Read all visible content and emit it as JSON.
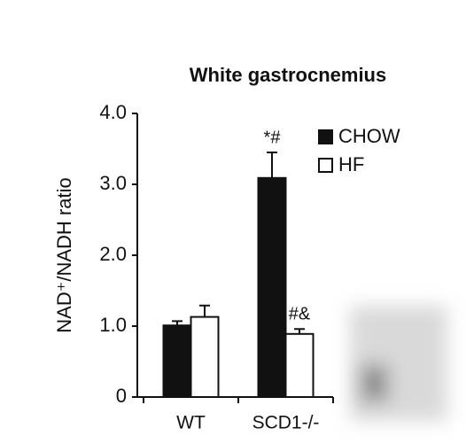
{
  "chart_data": {
    "type": "bar",
    "title": "White gastrocnemius",
    "y_label": "NAD⁺/NADH ratio",
    "categories": [
      "WT",
      "SCD1-/-"
    ],
    "series": [
      {
        "name": "CHOW",
        "color": "#111111",
        "values": [
          1.01,
          3.09
        ],
        "errors": [
          0.06,
          0.36
        ],
        "annotations": [
          null,
          "*#"
        ]
      },
      {
        "name": "HF",
        "color": "#ffffff",
        "values": [
          1.13,
          0.89
        ],
        "errors": [
          0.16,
          0.07
        ],
        "annotations": [
          null,
          "#&"
        ]
      }
    ],
    "ylim": [
      0,
      4
    ],
    "yticks": [
      0,
      {
        "value": 1,
        "label": "1.0"
      },
      {
        "value": 2,
        "label": "2.0"
      },
      {
        "value": 3,
        "label": "3.0"
      },
      {
        "value": 4,
        "label": "4.0"
      }
    ],
    "legend": "upper right",
    "grid": false
  }
}
